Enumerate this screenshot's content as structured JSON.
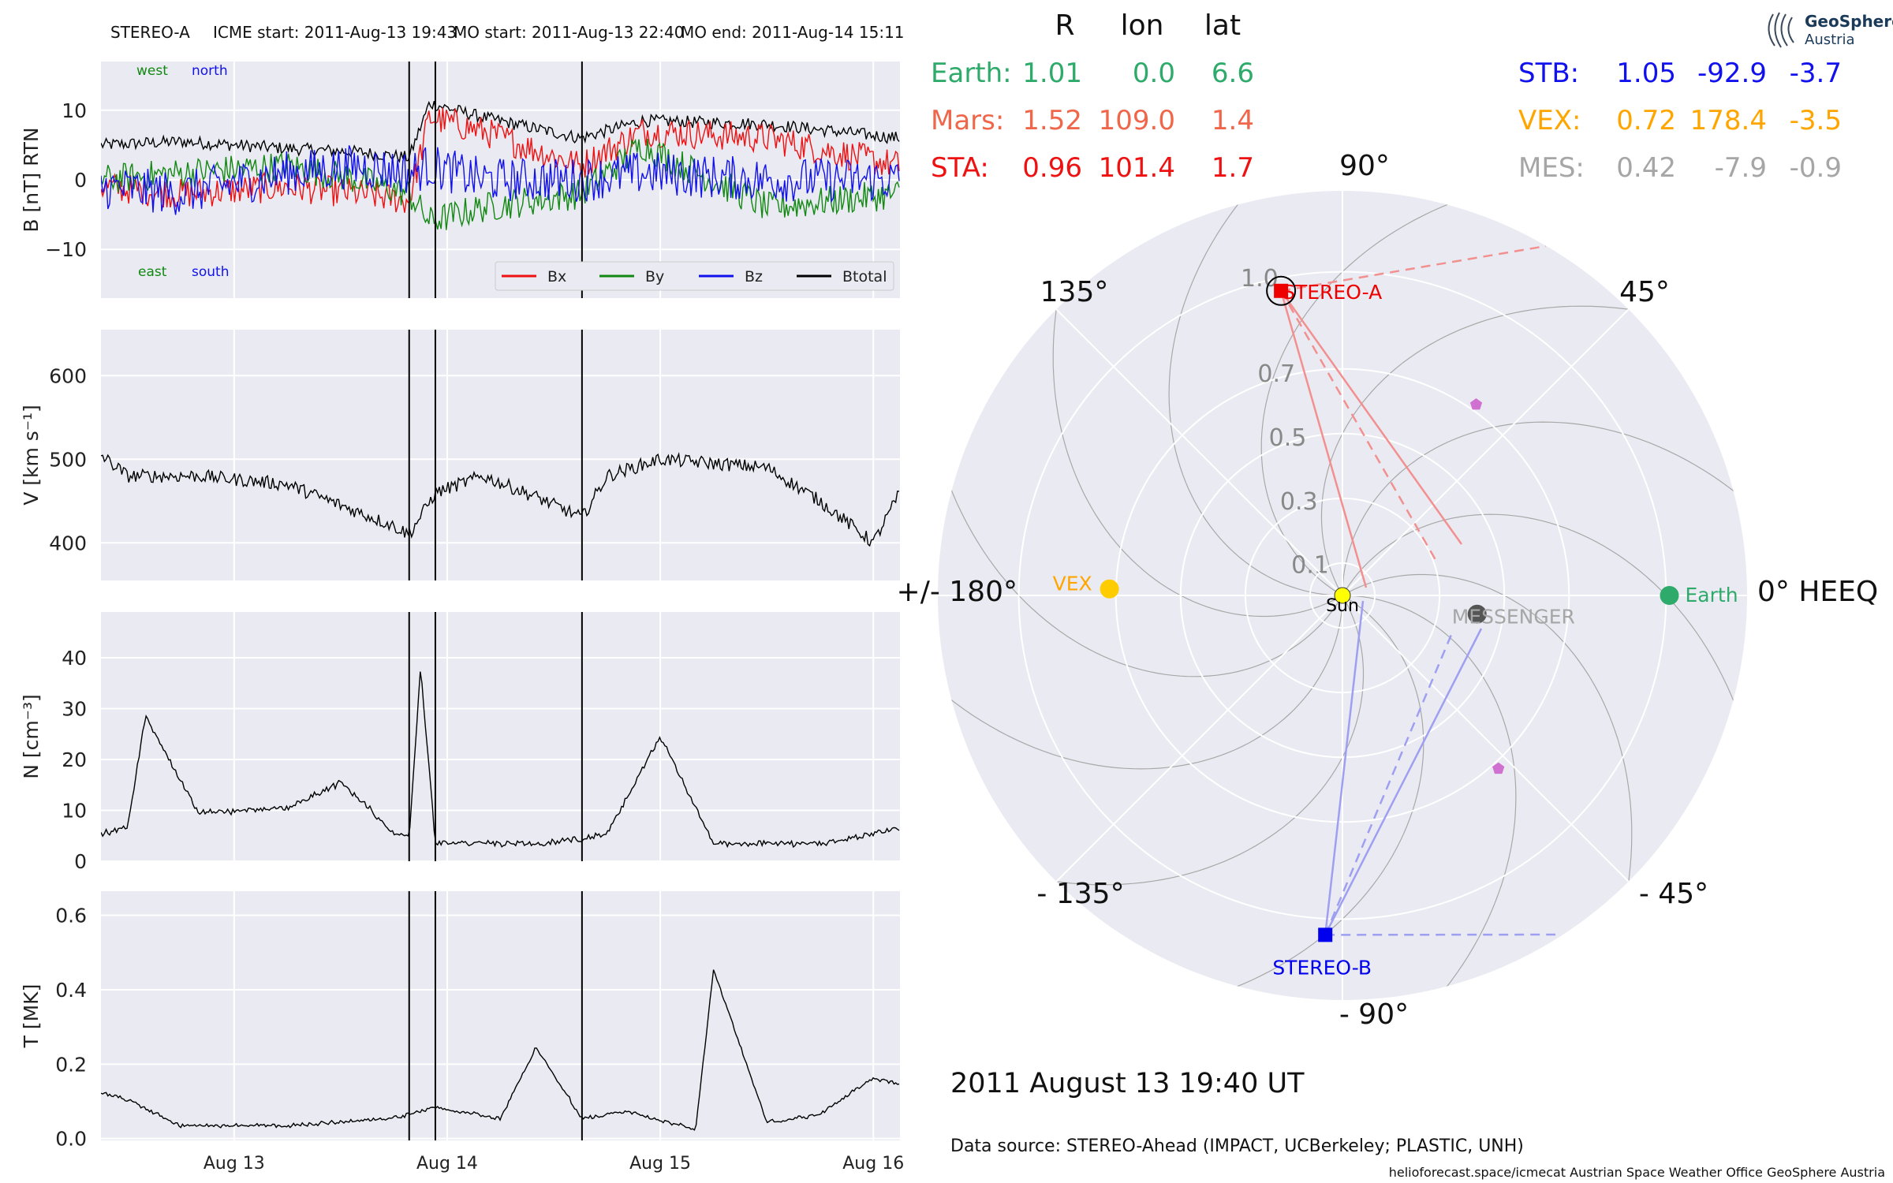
{
  "header": {
    "spacecraft": "STEREO-A",
    "icme_start": "ICME start: 2011-Aug-13 19:43",
    "mo_start": "MO start: 2011-Aug-13 22:40",
    "mo_end": "MO end: 2011-Aug-14 15:11"
  },
  "logo": {
    "line1": "GeoSphere",
    "line2": "Austria"
  },
  "position_table": {
    "headers": [
      "R",
      "lon",
      "lat"
    ],
    "rows_left": [
      {
        "name": "Earth:",
        "R": "1.01",
        "lon": "0.0",
        "lat": "6.6",
        "color": "#2eaa6a"
      },
      {
        "name": "Mars:",
        "R": "1.52",
        "lon": "109.0",
        "lat": "1.4",
        "color": "#f0664a"
      },
      {
        "name": "STA:",
        "R": "0.96",
        "lon": "101.4",
        "lat": "1.7",
        "color": "#ee1111"
      }
    ],
    "rows_right": [
      {
        "name": "STB:",
        "R": "1.05",
        "lon": "-92.9",
        "lat": "-3.7",
        "color": "#1111ee"
      },
      {
        "name": "VEX:",
        "R": "0.72",
        "lon": "178.4",
        "lat": "-3.5",
        "color": "#ffa500"
      },
      {
        "name": "MES:",
        "R": "0.42",
        "lon": "-7.9",
        "lat": "-0.9",
        "color": "#a6a6a6"
      }
    ]
  },
  "chart_data": [
    {
      "type": "line",
      "panel": "B",
      "ylabel": "B [nT] RTN",
      "ylim": [
        -17,
        17
      ],
      "yticks": [
        "10",
        "0",
        "−10"
      ],
      "ytick_values": [
        10,
        0,
        -10
      ],
      "x_range": [
        "2011-08-12T09:00",
        "2011-08-16T03:00"
      ],
      "xticks": [
        "Aug 13",
        "Aug 14",
        "Aug 15",
        "Aug 16"
      ],
      "xtick_values": [
        "2011-08-13",
        "2011-08-14",
        "2011-08-15",
        "2011-08-16"
      ],
      "vlines": [
        "2011-08-13T19:43",
        "2011-08-13T22:40",
        "2011-08-14T15:11"
      ],
      "annotations": {
        "west": "west",
        "north": "north",
        "east": "east",
        "south": "south"
      },
      "legend": {
        "position": "lower-right",
        "items": [
          {
            "name": "Bx",
            "color": "#ee1111"
          },
          {
            "name": "By",
            "color": "#118811"
          },
          {
            "name": "Bz",
            "color": "#1111ee"
          },
          {
            "name": "Btotal",
            "color": "#000000"
          }
        ]
      },
      "series": [
        {
          "name": "Btotal",
          "color": "#000000",
          "times": [
            "2011-08-12T09:00",
            "2011-08-12T18:00",
            "2011-08-13T06:00",
            "2011-08-13T14:00",
            "2011-08-13T19:43",
            "2011-08-13T22:00",
            "2011-08-14T04:00",
            "2011-08-14T15:00",
            "2011-08-14T22:00",
            "2011-08-15T12:00",
            "2011-08-16T03:00"
          ],
          "values": [
            5,
            5.5,
            4.5,
            4,
            3.2,
            11,
            9,
            6,
            8.5,
            8,
            6
          ]
        },
        {
          "name": "Bx",
          "color": "#ee1111",
          "times": [
            "2011-08-12T09:00",
            "2011-08-12T18:00",
            "2011-08-13T06:00",
            "2011-08-13T14:00",
            "2011-08-13T19:43",
            "2011-08-13T22:00",
            "2011-08-14T04:00",
            "2011-08-14T15:00",
            "2011-08-14T22:00",
            "2011-08-15T12:00",
            "2011-08-16T03:00"
          ],
          "values": [
            -1,
            -2,
            -1,
            -2,
            -3,
            9,
            7,
            2,
            7,
            6,
            2
          ]
        },
        {
          "name": "By",
          "color": "#118811",
          "times": [
            "2011-08-12T09:00",
            "2011-08-12T18:00",
            "2011-08-13T06:00",
            "2011-08-13T14:00",
            "2011-08-13T19:43",
            "2011-08-13T22:00",
            "2011-08-14T04:00",
            "2011-08-14T15:00",
            "2011-08-14T22:00",
            "2011-08-15T12:00",
            "2011-08-16T03:00"
          ],
          "values": [
            0,
            1,
            2,
            0,
            -2,
            -6,
            -4,
            -2,
            5,
            -4,
            -2
          ]
        },
        {
          "name": "Bz",
          "color": "#1111ee",
          "times": [
            "2011-08-12T09:00",
            "2011-08-12T18:00",
            "2011-08-13T06:00",
            "2011-08-13T14:00",
            "2011-08-13T19:43",
            "2011-08-13T22:00",
            "2011-08-14T04:00",
            "2011-08-14T15:00",
            "2011-08-14T22:00",
            "2011-08-15T12:00",
            "2011-08-16T03:00"
          ],
          "values": [
            -1,
            -2,
            1,
            2,
            1,
            2,
            0,
            0,
            1,
            0,
            0
          ]
        }
      ]
    },
    {
      "type": "line",
      "panel": "V",
      "ylabel": "V [km s⁻¹]",
      "ylim": [
        355,
        655
      ],
      "yticks": [
        "600",
        "500",
        "400"
      ],
      "ytick_values": [
        600,
        500,
        400
      ],
      "x_range": [
        "2011-08-12T09:00",
        "2011-08-16T03:00"
      ],
      "xticks": [
        "Aug 13",
        "Aug 14",
        "Aug 15",
        "Aug 16"
      ],
      "xtick_values": [
        "2011-08-13",
        "2011-08-14",
        "2011-08-15",
        "2011-08-16"
      ],
      "vlines": [
        "2011-08-13T19:43",
        "2011-08-13T22:40",
        "2011-08-14T15:11"
      ],
      "series": [
        {
          "name": "V",
          "color": "#000000",
          "times": [
            "2011-08-12T09:00",
            "2011-08-12T12:00",
            "2011-08-12T20:00",
            "2011-08-13T06:00",
            "2011-08-13T12:00",
            "2011-08-13T18:00",
            "2011-08-13T19:43",
            "2011-08-13T22:40",
            "2011-08-14T04:00",
            "2011-08-14T10:00",
            "2011-08-14T15:11",
            "2011-08-14T18:00",
            "2011-08-15T00:00",
            "2011-08-15T12:00",
            "2011-08-15T18:00",
            "2011-08-16T00:00",
            "2011-08-16T03:00"
          ],
          "values": [
            505,
            480,
            480,
            470,
            445,
            420,
            410,
            460,
            480,
            455,
            430,
            480,
            500,
            490,
            450,
            400,
            460
          ]
        }
      ]
    },
    {
      "type": "line",
      "panel": "N",
      "ylabel": "N [cm⁻³]",
      "ylim": [
        0,
        49
      ],
      "yticks": [
        "40",
        "30",
        "20",
        "10",
        "0"
      ],
      "ytick_values": [
        40,
        30,
        20,
        10,
        0
      ],
      "x_range": [
        "2011-08-12T09:00",
        "2011-08-16T03:00"
      ],
      "xticks": [
        "Aug 13",
        "Aug 14",
        "Aug 15",
        "Aug 16"
      ],
      "xtick_values": [
        "2011-08-13",
        "2011-08-14",
        "2011-08-15",
        "2011-08-16"
      ],
      "vlines": [
        "2011-08-13T19:43",
        "2011-08-13T22:40",
        "2011-08-14T15:11"
      ],
      "series": [
        {
          "name": "N",
          "color": "#000000",
          "times": [
            "2011-08-12T09:00",
            "2011-08-12T12:00",
            "2011-08-12T14:00",
            "2011-08-12T20:00",
            "2011-08-13T06:00",
            "2011-08-13T12:00",
            "2011-08-13T14:00",
            "2011-08-13T18:00",
            "2011-08-13T19:43",
            "2011-08-13T21:00",
            "2011-08-13T22:40",
            "2011-08-14T10:00",
            "2011-08-14T15:11",
            "2011-08-14T18:00",
            "2011-08-15T00:00",
            "2011-08-15T06:00",
            "2011-08-15T18:00",
            "2011-08-16T03:00"
          ],
          "values": [
            5,
            6,
            28,
            9,
            10,
            15,
            12,
            5,
            4,
            38,
            3,
            3,
            4,
            5,
            24,
            3,
            3,
            6
          ]
        }
      ]
    },
    {
      "type": "line",
      "panel": "T",
      "ylabel": "T [MK]",
      "ylim": [
        -0.005,
        0.665
      ],
      "yticks": [
        "0.6",
        "0.4",
        "0.2",
        "0.0"
      ],
      "ytick_values": [
        0.6,
        0.4,
        0.2,
        0.0
      ],
      "x_range": [
        "2011-08-12T09:00",
        "2011-08-16T03:00"
      ],
      "xticks": [
        "Aug 13",
        "Aug 14",
        "Aug 15",
        "Aug 16"
      ],
      "xtick_values": [
        "2011-08-13",
        "2011-08-14",
        "2011-08-15",
        "2011-08-16"
      ],
      "vlines": [
        "2011-08-13T19:43",
        "2011-08-13T22:40",
        "2011-08-14T15:11"
      ],
      "series": [
        {
          "name": "T",
          "color": "#000000",
          "times": [
            "2011-08-12T09:00",
            "2011-08-12T12:00",
            "2011-08-12T18:00",
            "2011-08-13T06:00",
            "2011-08-13T18:00",
            "2011-08-13T22:40",
            "2011-08-14T06:00",
            "2011-08-14T10:00",
            "2011-08-14T15:11",
            "2011-08-14T20:00",
            "2011-08-15T04:00",
            "2011-08-15T06:00",
            "2011-08-15T12:00",
            "2011-08-15T18:00",
            "2011-08-16T00:00",
            "2011-08-16T03:00"
          ],
          "values": [
            0.12,
            0.1,
            0.03,
            0.03,
            0.05,
            0.08,
            0.05,
            0.24,
            0.05,
            0.07,
            0.02,
            0.45,
            0.04,
            0.06,
            0.16,
            0.14
          ]
        }
      ]
    },
    {
      "type": "scatter",
      "panel": "polar-heeq",
      "rticks": [
        "1.0",
        "0.7",
        "0.5",
        "0.3",
        "0.1"
      ],
      "rtick_values": [
        1.0,
        0.7,
        0.5,
        0.3,
        0.1
      ],
      "rmax": 1.25,
      "angle_labels": [
        {
          "label": "0° HEEQ",
          "deg": 0
        },
        {
          "label": "45°",
          "deg": 45
        },
        {
          "label": "90°",
          "deg": 90
        },
        {
          "label": "135°",
          "deg": 135
        },
        {
          "label": "+/- 180°",
          "deg": 180
        },
        {
          "label": "- 135°",
          "deg": -135
        },
        {
          "label": "- 90°",
          "deg": -90
        },
        {
          "label": "- 45°",
          "deg": -45
        }
      ],
      "bodies": [
        {
          "name": "Sun",
          "r": 0.0,
          "lon": 0,
          "color": "#ffff00",
          "marker": "circle"
        },
        {
          "name": "Earth",
          "r": 1.01,
          "lon": 0.0,
          "color": "#2eaa6a",
          "marker": "circle"
        },
        {
          "name": "VEX",
          "r": 0.72,
          "lon": 178.4,
          "color": "#ffcc00",
          "label_color": "#ffa500",
          "marker": "circle"
        },
        {
          "name": "MESSENGER",
          "r": 0.42,
          "lon": -7.9,
          "color": "#555555",
          "label_color": "#a6a6a6",
          "marker": "circle"
        },
        {
          "name": "STEREO-A",
          "r": 0.96,
          "lon": 101.4,
          "color": "#ee0000",
          "marker": "square"
        },
        {
          "name": "STEREO-B",
          "r": 1.05,
          "lon": -92.9,
          "color": "#0000ee",
          "marker": "square"
        }
      ],
      "pentagons": [
        {
          "r": 0.72,
          "lon": 55,
          "color": "#d070d0"
        },
        {
          "r": 0.72,
          "lon": -48,
          "color": "#d070d0"
        }
      ]
    }
  ],
  "date_label": "2011 August 13  19:40 UT",
  "data_source": "Data source: STEREO-Ahead (IMPACT, UCBerkeley; PLASTIC, UNH)",
  "footer": "helioforecast.space/icmecat   Austrian Space Weather Office   GeoSphere Austria"
}
